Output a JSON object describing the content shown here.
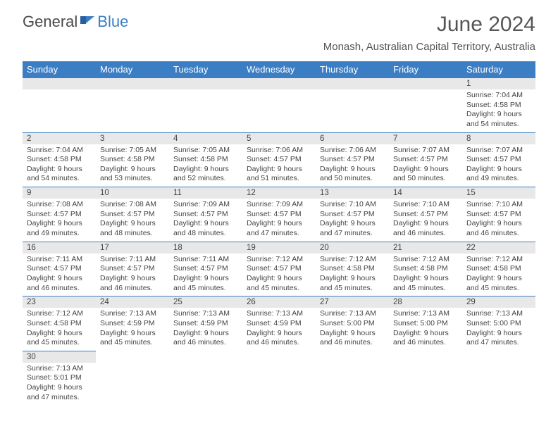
{
  "brand": {
    "part1": "General",
    "part2": "Blue"
  },
  "title": "June 2024",
  "location": "Monash, Australian Capital Territory, Australia",
  "days_of_week": [
    "Sunday",
    "Monday",
    "Tuesday",
    "Wednesday",
    "Thursday",
    "Friday",
    "Saturday"
  ],
  "colors": {
    "header_bg": "#3b7ec4",
    "header_text": "#ffffff",
    "daynum_bg": "#e8e8e8",
    "border": "#3b7ec4",
    "text": "#444444"
  },
  "grid": [
    [
      {
        "n": "",
        "sunrise": "",
        "sunset": "",
        "daylight": ""
      },
      {
        "n": "",
        "sunrise": "",
        "sunset": "",
        "daylight": ""
      },
      {
        "n": "",
        "sunrise": "",
        "sunset": "",
        "daylight": ""
      },
      {
        "n": "",
        "sunrise": "",
        "sunset": "",
        "daylight": ""
      },
      {
        "n": "",
        "sunrise": "",
        "sunset": "",
        "daylight": ""
      },
      {
        "n": "",
        "sunrise": "",
        "sunset": "",
        "daylight": ""
      },
      {
        "n": "1",
        "sunrise": "Sunrise: 7:04 AM",
        "sunset": "Sunset: 4:58 PM",
        "daylight": "Daylight: 9 hours and 54 minutes."
      }
    ],
    [
      {
        "n": "2",
        "sunrise": "Sunrise: 7:04 AM",
        "sunset": "Sunset: 4:58 PM",
        "daylight": "Daylight: 9 hours and 54 minutes."
      },
      {
        "n": "3",
        "sunrise": "Sunrise: 7:05 AM",
        "sunset": "Sunset: 4:58 PM",
        "daylight": "Daylight: 9 hours and 53 minutes."
      },
      {
        "n": "4",
        "sunrise": "Sunrise: 7:05 AM",
        "sunset": "Sunset: 4:58 PM",
        "daylight": "Daylight: 9 hours and 52 minutes."
      },
      {
        "n": "5",
        "sunrise": "Sunrise: 7:06 AM",
        "sunset": "Sunset: 4:57 PM",
        "daylight": "Daylight: 9 hours and 51 minutes."
      },
      {
        "n": "6",
        "sunrise": "Sunrise: 7:06 AM",
        "sunset": "Sunset: 4:57 PM",
        "daylight": "Daylight: 9 hours and 50 minutes."
      },
      {
        "n": "7",
        "sunrise": "Sunrise: 7:07 AM",
        "sunset": "Sunset: 4:57 PM",
        "daylight": "Daylight: 9 hours and 50 minutes."
      },
      {
        "n": "8",
        "sunrise": "Sunrise: 7:07 AM",
        "sunset": "Sunset: 4:57 PM",
        "daylight": "Daylight: 9 hours and 49 minutes."
      }
    ],
    [
      {
        "n": "9",
        "sunrise": "Sunrise: 7:08 AM",
        "sunset": "Sunset: 4:57 PM",
        "daylight": "Daylight: 9 hours and 49 minutes."
      },
      {
        "n": "10",
        "sunrise": "Sunrise: 7:08 AM",
        "sunset": "Sunset: 4:57 PM",
        "daylight": "Daylight: 9 hours and 48 minutes."
      },
      {
        "n": "11",
        "sunrise": "Sunrise: 7:09 AM",
        "sunset": "Sunset: 4:57 PM",
        "daylight": "Daylight: 9 hours and 48 minutes."
      },
      {
        "n": "12",
        "sunrise": "Sunrise: 7:09 AM",
        "sunset": "Sunset: 4:57 PM",
        "daylight": "Daylight: 9 hours and 47 minutes."
      },
      {
        "n": "13",
        "sunrise": "Sunrise: 7:10 AM",
        "sunset": "Sunset: 4:57 PM",
        "daylight": "Daylight: 9 hours and 47 minutes."
      },
      {
        "n": "14",
        "sunrise": "Sunrise: 7:10 AM",
        "sunset": "Sunset: 4:57 PM",
        "daylight": "Daylight: 9 hours and 46 minutes."
      },
      {
        "n": "15",
        "sunrise": "Sunrise: 7:10 AM",
        "sunset": "Sunset: 4:57 PM",
        "daylight": "Daylight: 9 hours and 46 minutes."
      }
    ],
    [
      {
        "n": "16",
        "sunrise": "Sunrise: 7:11 AM",
        "sunset": "Sunset: 4:57 PM",
        "daylight": "Daylight: 9 hours and 46 minutes."
      },
      {
        "n": "17",
        "sunrise": "Sunrise: 7:11 AM",
        "sunset": "Sunset: 4:57 PM",
        "daylight": "Daylight: 9 hours and 46 minutes."
      },
      {
        "n": "18",
        "sunrise": "Sunrise: 7:11 AM",
        "sunset": "Sunset: 4:57 PM",
        "daylight": "Daylight: 9 hours and 45 minutes."
      },
      {
        "n": "19",
        "sunrise": "Sunrise: 7:12 AM",
        "sunset": "Sunset: 4:57 PM",
        "daylight": "Daylight: 9 hours and 45 minutes."
      },
      {
        "n": "20",
        "sunrise": "Sunrise: 7:12 AM",
        "sunset": "Sunset: 4:58 PM",
        "daylight": "Daylight: 9 hours and 45 minutes."
      },
      {
        "n": "21",
        "sunrise": "Sunrise: 7:12 AM",
        "sunset": "Sunset: 4:58 PM",
        "daylight": "Daylight: 9 hours and 45 minutes."
      },
      {
        "n": "22",
        "sunrise": "Sunrise: 7:12 AM",
        "sunset": "Sunset: 4:58 PM",
        "daylight": "Daylight: 9 hours and 45 minutes."
      }
    ],
    [
      {
        "n": "23",
        "sunrise": "Sunrise: 7:12 AM",
        "sunset": "Sunset: 4:58 PM",
        "daylight": "Daylight: 9 hours and 45 minutes."
      },
      {
        "n": "24",
        "sunrise": "Sunrise: 7:13 AM",
        "sunset": "Sunset: 4:59 PM",
        "daylight": "Daylight: 9 hours and 45 minutes."
      },
      {
        "n": "25",
        "sunrise": "Sunrise: 7:13 AM",
        "sunset": "Sunset: 4:59 PM",
        "daylight": "Daylight: 9 hours and 46 minutes."
      },
      {
        "n": "26",
        "sunrise": "Sunrise: 7:13 AM",
        "sunset": "Sunset: 4:59 PM",
        "daylight": "Daylight: 9 hours and 46 minutes."
      },
      {
        "n": "27",
        "sunrise": "Sunrise: 7:13 AM",
        "sunset": "Sunset: 5:00 PM",
        "daylight": "Daylight: 9 hours and 46 minutes."
      },
      {
        "n": "28",
        "sunrise": "Sunrise: 7:13 AM",
        "sunset": "Sunset: 5:00 PM",
        "daylight": "Daylight: 9 hours and 46 minutes."
      },
      {
        "n": "29",
        "sunrise": "Sunrise: 7:13 AM",
        "sunset": "Sunset: 5:00 PM",
        "daylight": "Daylight: 9 hours and 47 minutes."
      }
    ],
    [
      {
        "n": "30",
        "sunrise": "Sunrise: 7:13 AM",
        "sunset": "Sunset: 5:01 PM",
        "daylight": "Daylight: 9 hours and 47 minutes."
      },
      {
        "n": "",
        "sunrise": "",
        "sunset": "",
        "daylight": ""
      },
      {
        "n": "",
        "sunrise": "",
        "sunset": "",
        "daylight": ""
      },
      {
        "n": "",
        "sunrise": "",
        "sunset": "",
        "daylight": ""
      },
      {
        "n": "",
        "sunrise": "",
        "sunset": "",
        "daylight": ""
      },
      {
        "n": "",
        "sunrise": "",
        "sunset": "",
        "daylight": ""
      },
      {
        "n": "",
        "sunrise": "",
        "sunset": "",
        "daylight": ""
      }
    ]
  ]
}
